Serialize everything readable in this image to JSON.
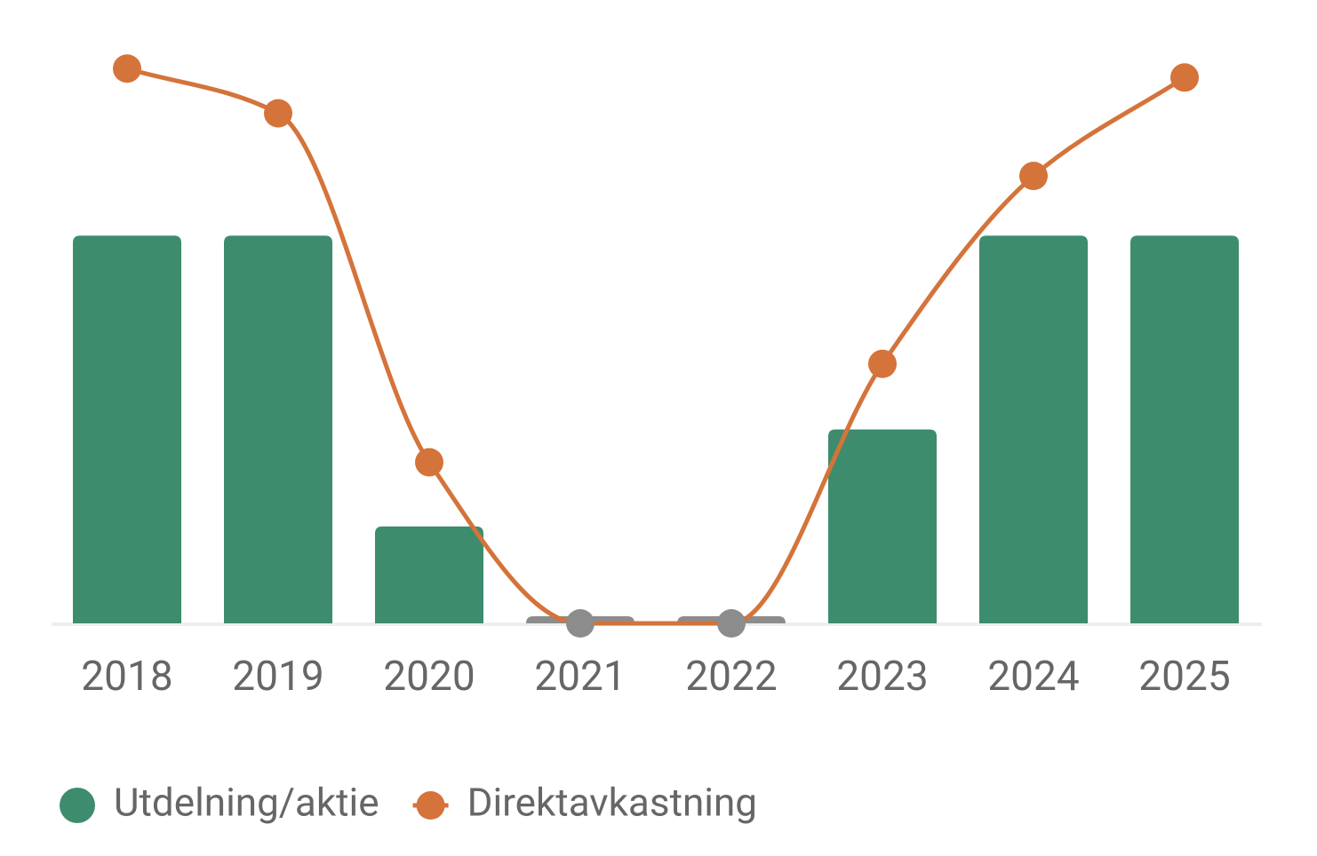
{
  "chart_data": {
    "type": "bar+line",
    "categories": [
      "2018",
      "2019",
      "2020",
      "2021",
      "2022",
      "2023",
      "2024",
      "2025"
    ],
    "series": [
      {
        "name": "Utdelning/aktie",
        "type": "bar",
        "color": "#3d8c6e",
        "values": [
          2,
          2,
          0.5,
          0,
          0,
          1,
          2,
          2
        ]
      },
      {
        "name": "Direktavkastning",
        "type": "line",
        "axis": "y2",
        "color": "#d4733a",
        "values": [
          6.2,
          5.7,
          1.8,
          0,
          0,
          2.9,
          5.0,
          6.1
        ]
      }
    ],
    "zero_color": "#8c8c8c",
    "ylim": [
      0,
      3
    ],
    "y2lim": [
      0,
      6.5
    ],
    "legend": "bottom-left"
  }
}
